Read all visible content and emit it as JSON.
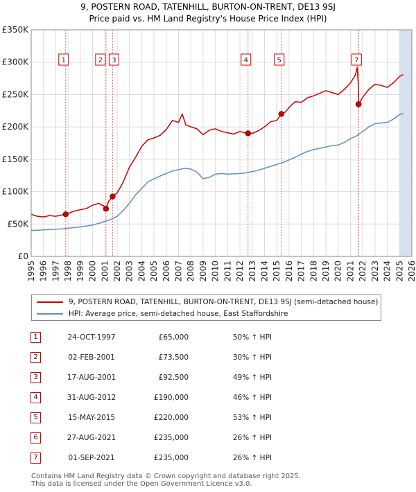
{
  "title_line1": "9, POSTERN ROAD, TATENHILL, BURTON-ON-TRENT, DE13 9SJ",
  "title_line2": "Price paid vs. HM Land Registry's House Price Index (HPI)",
  "colors": {
    "price_line": "#cc0000",
    "hpi_line": "#5b8ec4",
    "shade": "#dce6f2",
    "grid": "#dcdcdc",
    "marker_vline": "#e06666"
  },
  "chart_data": {
    "type": "line",
    "x_range": [
      1995,
      2026
    ],
    "ylim": [
      0,
      350000
    ],
    "y_ticks": [
      {
        "value": 0,
        "label": "£0"
      },
      {
        "value": 50000,
        "label": "£50K"
      },
      {
        "value": 100000,
        "label": "£100K"
      },
      {
        "value": 150000,
        "label": "£150K"
      },
      {
        "value": 200000,
        "label": "£200K"
      },
      {
        "value": 250000,
        "label": "£250K"
      },
      {
        "value": 300000,
        "label": "£300K"
      },
      {
        "value": 350000,
        "label": "£350K"
      }
    ],
    "x_ticks": [
      1995,
      1996,
      1997,
      1998,
      1999,
      2000,
      2001,
      2002,
      2003,
      2004,
      2005,
      2006,
      2007,
      2008,
      2009,
      2010,
      2011,
      2012,
      2013,
      2014,
      2015,
      2016,
      2017,
      2018,
      2019,
      2020,
      2021,
      2022,
      2023,
      2024,
      2025,
      2026
    ],
    "forecast_from": 2025.0,
    "series": [
      {
        "name": "9, POSTERN ROAD, TATENHILL, BURTON-ON-TRENT, DE13 9SJ (semi-detached house)",
        "x": [
          1995.0,
          1995.5,
          1996.0,
          1996.5,
          1997.0,
          1997.5,
          1997.81,
          1998.0,
          1998.5,
          1999.0,
          1999.5,
          2000.0,
          2000.5,
          2000.9,
          2001.09,
          2001.3,
          2001.63,
          2002.0,
          2002.5,
          2003.0,
          2003.5,
          2004.0,
          2004.5,
          2005.0,
          2005.5,
          2006.0,
          2006.5,
          2007.0,
          2007.3,
          2007.6,
          2008.0,
          2008.5,
          2009.0,
          2009.5,
          2010.0,
          2010.5,
          2011.0,
          2011.5,
          2012.0,
          2012.4,
          2012.66,
          2013.0,
          2013.5,
          2014.0,
          2014.5,
          2015.0,
          2015.37,
          2015.7,
          2016.0,
          2016.5,
          2017.0,
          2017.5,
          2018.0,
          2018.5,
          2019.0,
          2019.5,
          2020.0,
          2020.5,
          2021.0,
          2021.4,
          2021.55,
          2021.65,
          2021.67,
          2022.0,
          2022.5,
          2023.0,
          2023.5,
          2024.0,
          2024.5,
          2025.0,
          2025.3
        ],
        "values": [
          65000,
          62000,
          61000,
          63000,
          62000,
          64000,
          65000,
          66000,
          70000,
          72000,
          74000,
          79000,
          82000,
          78000,
          73500,
          85000,
          92500,
          98000,
          115000,
          138000,
          153000,
          170000,
          180000,
          183000,
          187000,
          196000,
          210000,
          207000,
          220000,
          203000,
          200000,
          197000,
          188000,
          195000,
          197000,
          193000,
          191000,
          189000,
          193000,
          191000,
          190000,
          190000,
          194000,
          200000,
          208000,
          210000,
          220000,
          223000,
          230000,
          239000,
          238000,
          245000,
          248000,
          252000,
          256000,
          253000,
          250000,
          258000,
          268000,
          280000,
          292000,
          262000,
          235000,
          246000,
          258000,
          266000,
          264000,
          261000,
          268000,
          278000,
          281000
        ]
      },
      {
        "name": "HPI: Average price, semi-detached house, East Staffordshire",
        "x": [
          1995.0,
          1995.5,
          1996.0,
          1996.5,
          1997.0,
          1997.5,
          1998.0,
          1998.5,
          1999.0,
          1999.5,
          2000.0,
          2000.5,
          2001.0,
          2001.5,
          2002.0,
          2002.5,
          2003.0,
          2003.5,
          2004.0,
          2004.5,
          2005.0,
          2005.5,
          2006.0,
          2006.5,
          2007.0,
          2007.5,
          2008.0,
          2008.5,
          2009.0,
          2009.5,
          2010.0,
          2010.5,
          2011.0,
          2011.5,
          2012.0,
          2012.5,
          2013.0,
          2013.5,
          2014.0,
          2014.5,
          2015.0,
          2015.5,
          2016.0,
          2016.5,
          2017.0,
          2017.5,
          2018.0,
          2018.5,
          2019.0,
          2019.5,
          2020.0,
          2020.5,
          2021.0,
          2021.5,
          2022.0,
          2022.5,
          2023.0,
          2023.5,
          2024.0,
          2024.5,
          2025.0,
          2025.3
        ],
        "values": [
          40000,
          40500,
          41000,
          41500,
          42000,
          42500,
          43500,
          44500,
          45500,
          47000,
          48500,
          51000,
          54000,
          57000,
          62000,
          71000,
          82000,
          95000,
          105000,
          115000,
          120000,
          124000,
          128000,
          132000,
          134000,
          136000,
          135000,
          130000,
          120000,
          122000,
          127000,
          128000,
          127000,
          127500,
          128000,
          129000,
          131000,
          133000,
          136000,
          139000,
          142000,
          145000,
          149000,
          153000,
          158000,
          162000,
          165000,
          167000,
          169000,
          171000,
          172000,
          176000,
          182000,
          186000,
          193000,
          200000,
          205000,
          206000,
          207000,
          212000,
          219000,
          221000
        ]
      }
    ],
    "sales": [
      {
        "label": "1",
        "x": 1997.81,
        "value": 65000
      },
      {
        "label": "2",
        "x": 2001.09,
        "value": 73500
      },
      {
        "label": "3",
        "x": 2001.63,
        "value": 92500
      },
      {
        "label": "4",
        "x": 2012.66,
        "value": 190000
      },
      {
        "label": "5",
        "x": 2015.37,
        "value": 220000
      },
      {
        "label": "6",
        "x": 2021.65,
        "value": 235000
      },
      {
        "label": "7",
        "x": 2021.67,
        "value": 235000
      }
    ],
    "marker_boxes": [
      "1",
      "2",
      "3",
      "4",
      "5",
      "7"
    ]
  },
  "legend": {
    "price": "9, POSTERN ROAD, TATENHILL, BURTON-ON-TRENT, DE13 9SJ (semi-detached house)",
    "hpi": "HPI: Average price, semi-detached house, East Staffordshire"
  },
  "table": [
    {
      "num": "1",
      "date": "24-OCT-1997",
      "price": "£65,000",
      "hpi": "50% ↑ HPI"
    },
    {
      "num": "2",
      "date": "02-FEB-2001",
      "price": "£73,500",
      "hpi": "30% ↑ HPI"
    },
    {
      "num": "3",
      "date": "17-AUG-2001",
      "price": "£92,500",
      "hpi": "49% ↑ HPI"
    },
    {
      "num": "4",
      "date": "31-AUG-2012",
      "price": "£190,000",
      "hpi": "46% ↑ HPI"
    },
    {
      "num": "5",
      "date": "15-MAY-2015",
      "price": "£220,000",
      "hpi": "53% ↑ HPI"
    },
    {
      "num": "6",
      "date": "27-AUG-2021",
      "price": "£235,000",
      "hpi": "26% ↑ HPI"
    },
    {
      "num": "7",
      "date": "01-SEP-2021",
      "price": "£235,000",
      "hpi": "26% ↑ HPI"
    }
  ],
  "footer": {
    "line1": "Contains HM Land Registry data © Crown copyright and database right 2025.",
    "line2": "This data is licensed under the Open Government Licence v3.0."
  }
}
